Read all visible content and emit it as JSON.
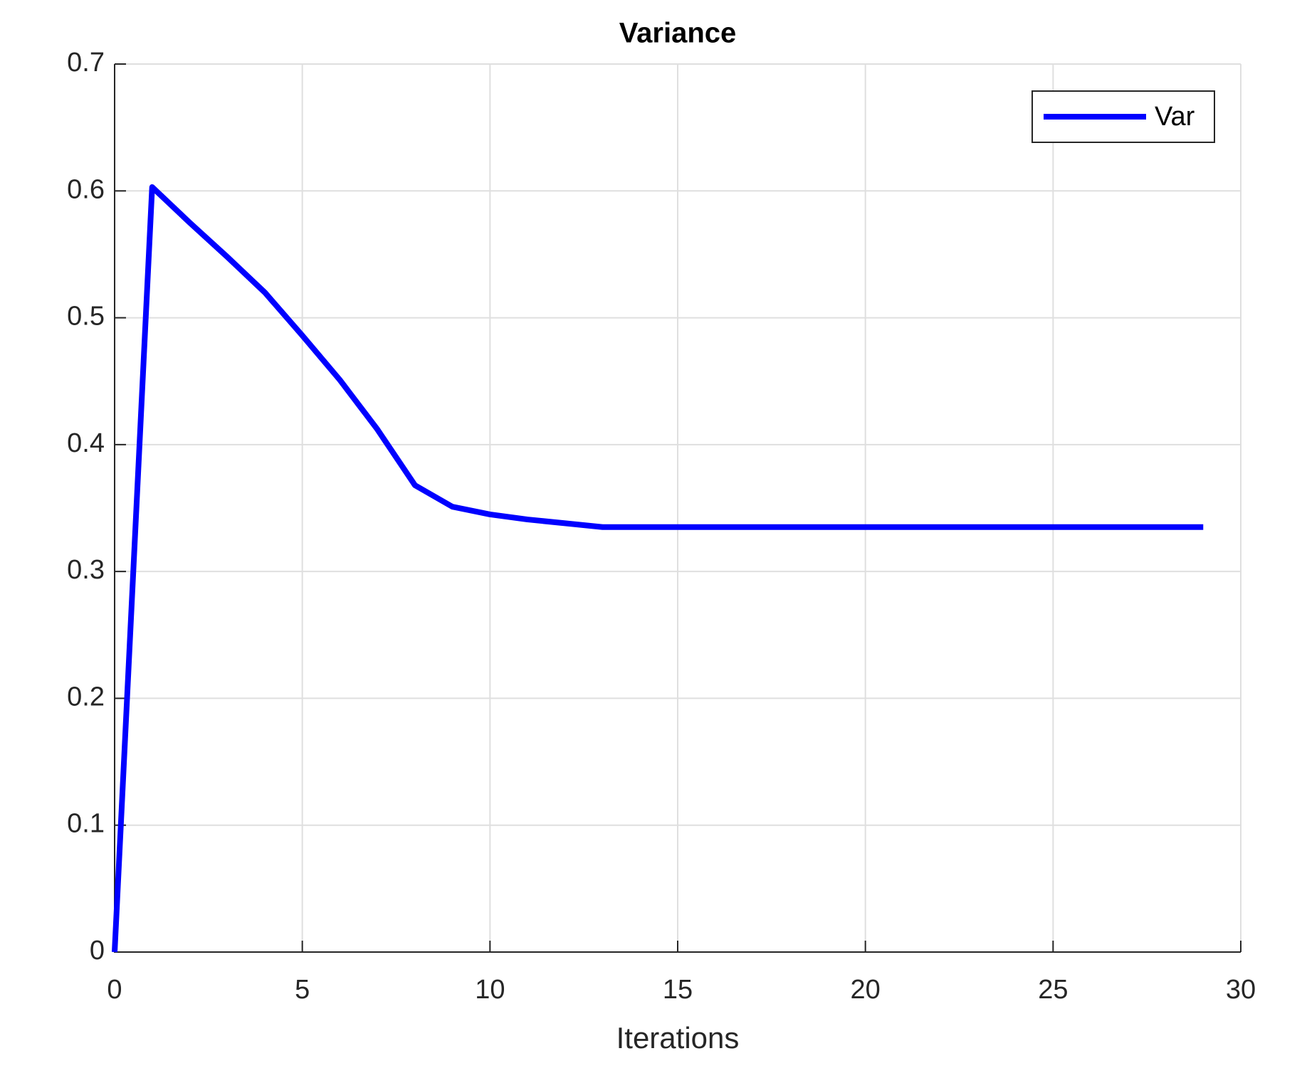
{
  "chart_data": {
    "type": "line",
    "title": "Variance",
    "x_label": "Iterations",
    "x": [
      0,
      1,
      2,
      3,
      4,
      5,
      6,
      7,
      8,
      9,
      10,
      11,
      12,
      13,
      14,
      15,
      16,
      17,
      18,
      19,
      20,
      21,
      22,
      23,
      24,
      25,
      26,
      27,
      28,
      29
    ],
    "series": [
      {
        "name": "Var",
        "color": "#0000ff",
        "values": [
          0,
          0.603,
          0.575,
          0.548,
          0.52,
          0.486,
          0.451,
          0.412,
          0.368,
          0.351,
          0.345,
          0.341,
          0.338,
          0.335,
          0.335,
          0.335,
          0.335,
          0.335,
          0.335,
          0.335,
          0.335,
          0.335,
          0.335,
          0.335,
          0.335,
          0.335,
          0.335,
          0.335,
          0.335,
          0.335
        ]
      }
    ],
    "xlim": [
      0,
      30
    ],
    "xticks": [
      0,
      5,
      10,
      15,
      20,
      25,
      30
    ],
    "ylim": [
      0,
      0.7
    ],
    "yticks": [
      0,
      0.1,
      0.2,
      0.3,
      0.4,
      0.5,
      0.6,
      0.7
    ],
    "grid": true,
    "legend_position": "upper-right"
  }
}
